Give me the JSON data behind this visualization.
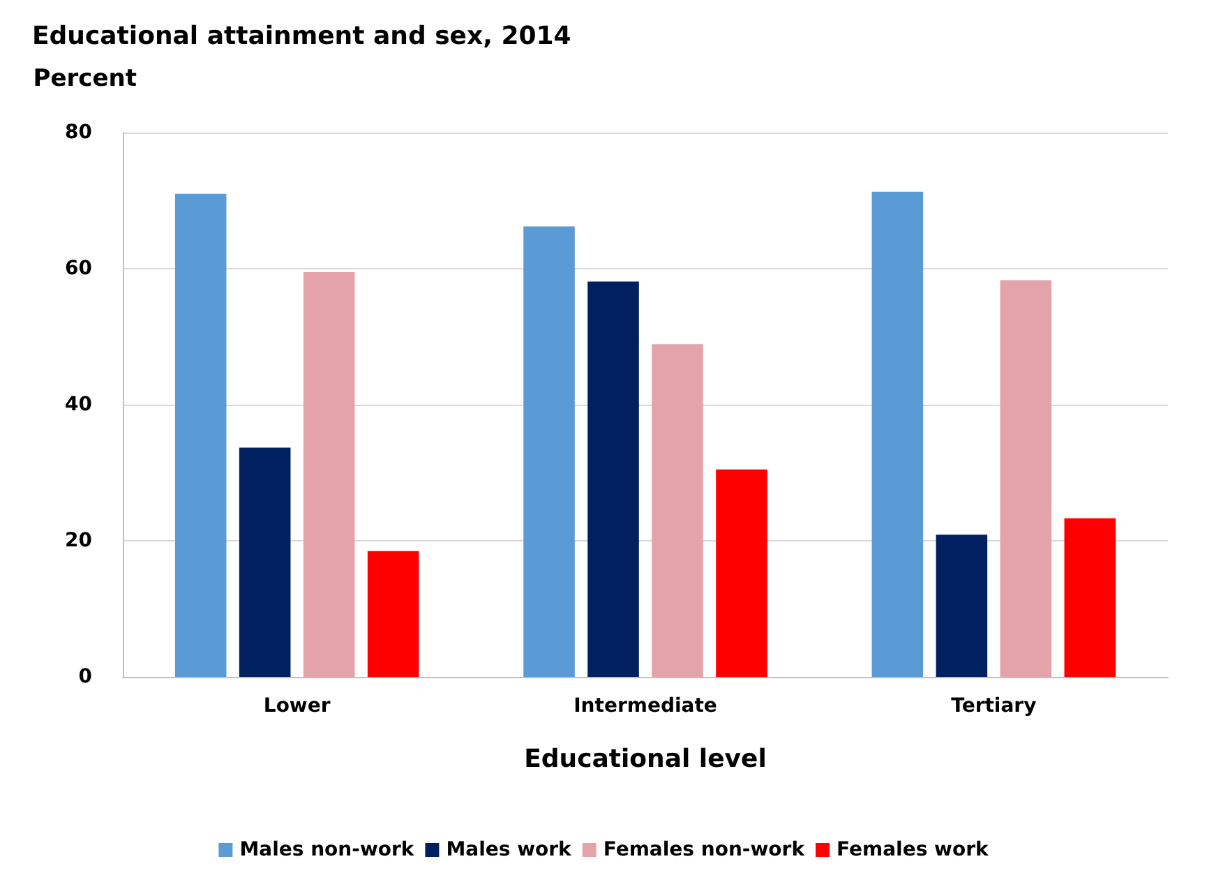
{
  "chart_data": {
    "type": "bar",
    "title": "Educational attainment and sex, 2014",
    "ylabel": "Percent",
    "xlabel": "Educational level",
    "categories": [
      "Lower",
      "Intermediate",
      "Tertiary"
    ],
    "series": [
      {
        "name": "Males non-work",
        "color": "#5b9bd5",
        "values": [
          71,
          66.2,
          71.3
        ]
      },
      {
        "name": "Males work",
        "color": "#002060",
        "values": [
          33.7,
          58.1,
          20.9
        ]
      },
      {
        "name": "Females non-work",
        "color": "#e3a3a9",
        "values": [
          59.5,
          48.9,
          58.3
        ]
      },
      {
        "name": "Females work",
        "color": "#ff0000",
        "values": [
          18.5,
          30.5,
          23.3
        ]
      }
    ],
    "ylim": [
      0,
      80
    ],
    "yticks": [
      0,
      20,
      40,
      60,
      80
    ],
    "grid": "y",
    "legend": "bottom"
  }
}
